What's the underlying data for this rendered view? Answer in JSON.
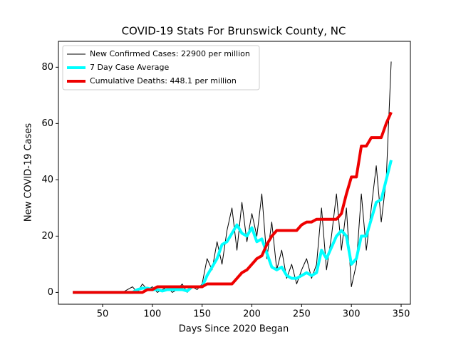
{
  "chart_data": {
    "type": "line",
    "title": "COVID-19 Stats For Brunswick County, NC",
    "x_label": "Days Since 2020 Began",
    "y_label": "New COVID-19 Cases",
    "x": [
      20,
      25,
      30,
      35,
      40,
      45,
      50,
      55,
      60,
      65,
      70,
      75,
      80,
      85,
      90,
      95,
      100,
      105,
      110,
      115,
      120,
      125,
      130,
      135,
      140,
      145,
      150,
      155,
      160,
      165,
      170,
      175,
      180,
      185,
      190,
      195,
      200,
      205,
      210,
      215,
      220,
      225,
      230,
      235,
      240,
      245,
      250,
      255,
      260,
      265,
      270,
      275,
      280,
      285,
      290,
      295,
      300,
      305,
      310,
      315,
      320,
      325,
      330,
      335,
      340
    ],
    "series": [
      {
        "name": "New Confirmed Cases: 22900 per million",
        "color": "#000000",
        "values": [
          0,
          0,
          0,
          0,
          0,
          0,
          0,
          0,
          0,
          0,
          0,
          1,
          2,
          0,
          3,
          1,
          2,
          0,
          1,
          2,
          0,
          1,
          3,
          0,
          2,
          1,
          3,
          12,
          8,
          18,
          10,
          22,
          30,
          15,
          32,
          18,
          28,
          20,
          35,
          12,
          25,
          8,
          15,
          5,
          10,
          3,
          8,
          12,
          5,
          10,
          30,
          8,
          20,
          35,
          15,
          30,
          2,
          10,
          35,
          15,
          30,
          45,
          25,
          40,
          82
        ]
      },
      {
        "name": "7 Day Case Average",
        "color": "#00ffff",
        "values": [
          0,
          0,
          0,
          0,
          0,
          0,
          0,
          0,
          0,
          0,
          0,
          0,
          0,
          1,
          1.5,
          1.5,
          1,
          1,
          0.5,
          1,
          1,
          1,
          1,
          0.5,
          2,
          2,
          2,
          6,
          9,
          12,
          17,
          18,
          21,
          24,
          21,
          20,
          23,
          18,
          19,
          14,
          9,
          8,
          9,
          6,
          5,
          5,
          6,
          7,
          6,
          7,
          15,
          12,
          16,
          20,
          22,
          20,
          10,
          12,
          20,
          20,
          26,
          32,
          33,
          40,
          47
        ]
      },
      {
        "name": "Cumulative Deaths: 448.1 per million",
        "color": "#ee0000",
        "values": [
          0,
          0,
          0,
          0,
          0,
          0,
          0,
          0,
          0,
          0,
          0,
          0,
          0,
          0,
          0,
          1,
          1,
          2,
          2,
          2,
          2,
          2,
          2,
          2,
          2,
          2,
          2,
          3,
          3,
          3,
          3,
          3,
          3,
          5,
          7,
          8,
          10,
          12,
          13,
          17,
          20,
          22,
          22,
          22,
          22,
          22,
          24,
          25,
          25,
          26,
          26,
          26,
          26,
          26,
          28,
          35,
          41,
          41,
          52,
          52,
          55,
          55,
          55,
          60,
          64
        ]
      }
    ],
    "xlim": [
      5.6,
      359.3
    ],
    "ylim": [
      -4.2,
      89.2
    ],
    "xticks": [
      50,
      100,
      150,
      200,
      250,
      300,
      350
    ],
    "yticks": [
      0,
      20,
      40,
      60,
      80
    ],
    "line_widths": [
      1,
      4,
      4
    ],
    "legend": "upper left"
  }
}
